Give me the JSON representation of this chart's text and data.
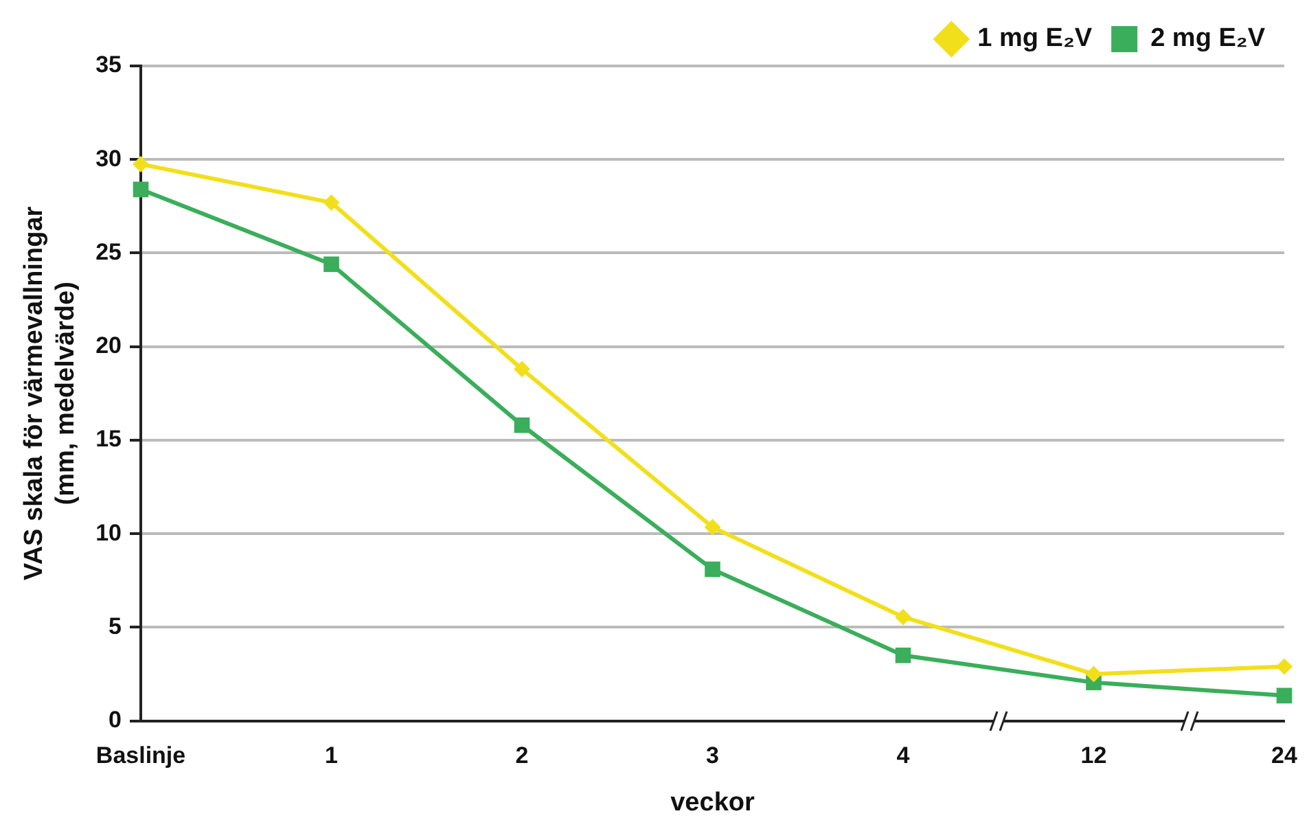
{
  "chart_data": {
    "type": "line",
    "xlabel": "veckor",
    "ylabel": "VAS skala för värmevallningar\n(mm, medelvärde)",
    "categories": [
      "Baslinje",
      "1",
      "2",
      "3",
      "4",
      "12",
      "24"
    ],
    "series": [
      {
        "name": "1 mg E₂V",
        "color": "#f2df1c",
        "marker": "diamond",
        "values": [
          29.75,
          27.7,
          18.8,
          10.35,
          5.55,
          2.5,
          2.9
        ]
      },
      {
        "name": "2 mg E₂V",
        "color": "#3aae5a",
        "marker": "square",
        "values": [
          28.4,
          24.4,
          15.8,
          8.1,
          3.5,
          2.05,
          1.35
        ]
      }
    ],
    "ylim": [
      0,
      35
    ],
    "yticks": [
      0,
      5,
      10,
      15,
      20,
      25,
      30,
      35
    ],
    "grid": "y",
    "legend": "top right",
    "line_style": "solid"
  }
}
